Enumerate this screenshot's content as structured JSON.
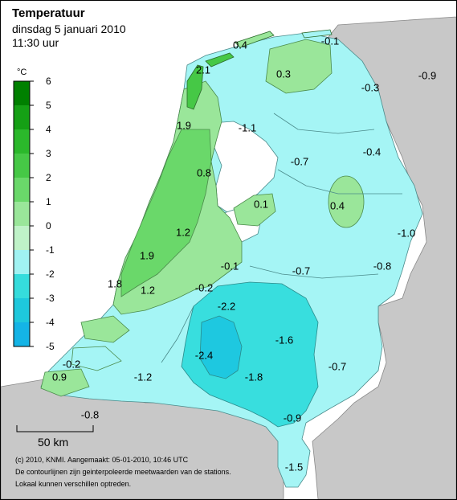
{
  "title": "Temperatuur",
  "date": "dinsdag 5 januari 2010",
  "time": "11:30 uur",
  "legend": {
    "unit": "°C",
    "ticks": [
      "6",
      "5",
      "4",
      "3",
      "2",
      "1",
      "0",
      "-1",
      "-2",
      "-3",
      "-4",
      "-5"
    ],
    "colors": [
      "#008000",
      "#15a015",
      "#2bb82b",
      "#46c846",
      "#6ad86a",
      "#9ae69a",
      "#bff2c8",
      "#a0f2f2",
      "#35dcdc",
      "#1ec8dc",
      "#14b4e6",
      "#0a9ee6"
    ]
  },
  "scale_bar": "50 km",
  "credits": [
    "(c) 2010, KNMI. Aangemaakt: 05-01-2010, 10:46 UTC",
    "De contourlijnen zijn geinterpoleerde meetwaarden van de stations.",
    "Lokaal kunnen verschillen optreden."
  ],
  "stations": [
    {
      "value": "0.4"
    },
    {
      "value": "-0.1"
    },
    {
      "value": "2.1"
    },
    {
      "value": "0.3"
    },
    {
      "value": "-0.9"
    },
    {
      "value": "-0.3"
    },
    {
      "value": "1.9"
    },
    {
      "value": "-1.1"
    },
    {
      "value": "-0.4"
    },
    {
      "value": "0.8"
    },
    {
      "value": "-0.7"
    },
    {
      "value": "0.1"
    },
    {
      "value": "0.4"
    },
    {
      "value": "1.2"
    },
    {
      "value": "-1.0"
    },
    {
      "value": "1.9"
    },
    {
      "value": "-0.1"
    },
    {
      "value": "-0.8"
    },
    {
      "value": "-0.7"
    },
    {
      "value": "1.8"
    },
    {
      "value": "1.2"
    },
    {
      "value": "-0.2"
    },
    {
      "value": "-2.2"
    },
    {
      "value": "-1.6"
    },
    {
      "value": "-2.4"
    },
    {
      "value": "-0.2"
    },
    {
      "value": "-0.7"
    },
    {
      "value": "-1.2"
    },
    {
      "value": "-1.8"
    },
    {
      "value": "0.9"
    },
    {
      "value": "-0.8"
    },
    {
      "value": "-0.9"
    },
    {
      "value": "-1.5"
    }
  ]
}
